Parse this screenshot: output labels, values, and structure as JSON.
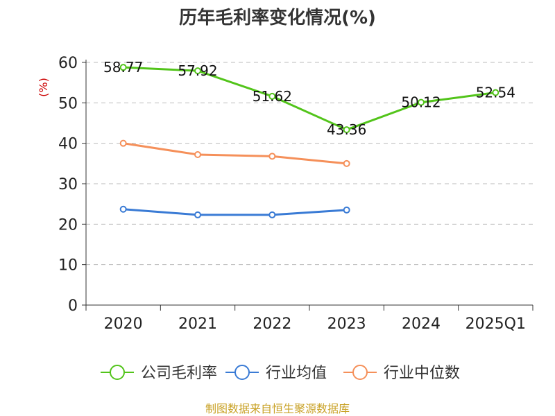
{
  "chart_data": {
    "type": "line",
    "title": "历年毛利率变化情况(%)",
    "ylabel": "(%)",
    "xlabel": "",
    "categories": [
      "2020",
      "2021",
      "2022",
      "2023",
      "2024",
      "2025Q1"
    ],
    "ylim": [
      0,
      60
    ],
    "yticks": [
      0,
      10,
      20,
      30,
      40,
      50,
      60
    ],
    "grid": true,
    "legend_position": "bottom",
    "series": [
      {
        "name": "公司毛利率",
        "color": "#52c41a",
        "values": [
          58.77,
          57.92,
          51.62,
          43.36,
          50.12,
          52.54
        ],
        "labels": [
          "58.77",
          "57.92",
          "51.62",
          "43.36",
          "50.12",
          "52.54"
        ]
      },
      {
        "name": "行业均值",
        "color": "#3a7bd5",
        "values": [
          23.7,
          22.3,
          22.3,
          23.5,
          null,
          null
        ]
      },
      {
        "name": "行业中位数",
        "color": "#f5905a",
        "values": [
          40.0,
          37.2,
          36.8,
          35.0,
          null,
          null
        ]
      }
    ],
    "source": "制图数据来自恒生聚源数据库"
  }
}
